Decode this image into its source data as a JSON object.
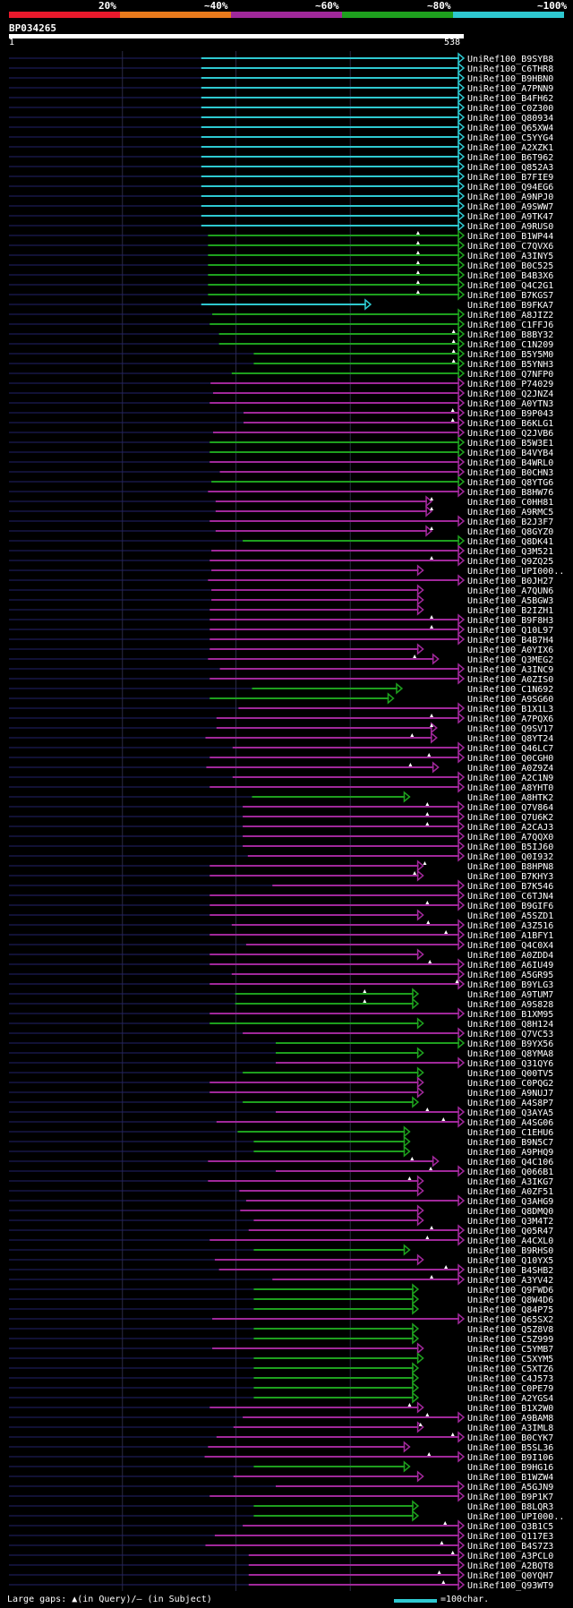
{
  "legend": {
    "labels": [
      "20%",
      "~40%",
      "~60%",
      "~80%",
      "~100%"
    ],
    "colors": [
      "#e8192c",
      "#e87a1c",
      "#a0289a",
      "#1ea01e",
      "#2ec8d0"
    ]
  },
  "query": {
    "name": "BP034265",
    "start": "1",
    "end": "538"
  },
  "footer": {
    "gaps_text": "Large gaps: ▲(in Query)/– (in Subject)",
    "scale_text": "=100char."
  },
  "hits": [
    {
      "id": "UniRef100_B9SYB8",
      "s": 228,
      "e": 538,
      "c": 4
    },
    {
      "id": "UniRef100_C6THR8",
      "s": 228,
      "e": 538,
      "c": 4
    },
    {
      "id": "UniRef100_B9HBN0",
      "s": 228,
      "e": 538,
      "c": 4
    },
    {
      "id": "UniRef100_A7PNN9",
      "s": 228,
      "e": 538,
      "c": 4
    },
    {
      "id": "UniRef100_B4FH62",
      "s": 228,
      "e": 538,
      "c": 4
    },
    {
      "id": "UniRef100_C0Z300",
      "s": 228,
      "e": 538,
      "c": 4
    },
    {
      "id": "UniRef100_Q80934",
      "s": 228,
      "e": 538,
      "c": 4
    },
    {
      "id": "UniRef100_Q65XW4",
      "s": 228,
      "e": 538,
      "c": 4
    },
    {
      "id": "UniRef100_C5YYG4",
      "s": 228,
      "e": 538,
      "c": 4
    },
    {
      "id": "UniRef100_A2XZK1",
      "s": 228,
      "e": 538,
      "c": 4
    },
    {
      "id": "UniRef100_B6T962",
      "s": 228,
      "e": 538,
      "c": 4
    },
    {
      "id": "UniRef100_Q852A3",
      "s": 228,
      "e": 538,
      "c": 4
    },
    {
      "id": "UniRef100_B7FIE9",
      "s": 228,
      "e": 538,
      "c": 4
    },
    {
      "id": "UniRef100_Q94EG6",
      "s": 228,
      "e": 538,
      "c": 4
    },
    {
      "id": "UniRef100_A9NPJ0",
      "s": 228,
      "e": 538,
      "c": 4
    },
    {
      "id": "UniRef100_A9SWW7",
      "s": 228,
      "e": 538,
      "c": 4
    },
    {
      "id": "UniRef100_A9TK47",
      "s": 228,
      "e": 538,
      "c": 4
    },
    {
      "id": "UniRef100_A9RUS0",
      "s": 228,
      "e": 538,
      "c": 4
    },
    {
      "id": "UniRef100_B1WP44",
      "s": 236,
      "e": 538,
      "c": 3,
      "t": [
        484
      ]
    },
    {
      "id": "UniRef100_C7QVX6",
      "s": 236,
      "e": 538,
      "c": 3,
      "t": [
        484
      ]
    },
    {
      "id": "UniRef100_A3INY5",
      "s": 236,
      "e": 538,
      "c": 3,
      "t": [
        484
      ]
    },
    {
      "id": "UniRef100_B0C525",
      "s": 236,
      "e": 538,
      "c": 3,
      "t": [
        484
      ]
    },
    {
      "id": "UniRef100_B4B3X6",
      "s": 236,
      "e": 538,
      "c": 3,
      "t": [
        484
      ]
    },
    {
      "id": "UniRef100_Q4C2G1",
      "s": 236,
      "e": 538,
      "c": 3,
      "t": [
        484
      ]
    },
    {
      "id": "UniRef100_B7KGS7",
      "s": 236,
      "e": 538,
      "c": 3,
      "t": [
        484
      ]
    },
    {
      "id": "UniRef100_B9FKA7",
      "s": 228,
      "e": 428,
      "c": 4
    },
    {
      "id": "UniRef100_A8JIZ2",
      "s": 241,
      "e": 538,
      "c": 3
    },
    {
      "id": "UniRef100_C1FFJ6",
      "s": 238,
      "e": 538,
      "c": 3
    },
    {
      "id": "UniRef100_B8BY32",
      "s": 249,
      "e": 538,
      "c": 3,
      "t": [
        526
      ]
    },
    {
      "id": "UniRef100_C1N209",
      "s": 249,
      "e": 538,
      "c": 3,
      "t": [
        526
      ]
    },
    {
      "id": "UniRef100_B5Y5M0",
      "s": 290,
      "e": 538,
      "c": 3,
      "t": [
        526
      ]
    },
    {
      "id": "UniRef100_B5YNH3",
      "s": 290,
      "e": 538,
      "c": 3,
      "t": [
        526
      ]
    },
    {
      "id": "UniRef100_Q7NFP0",
      "s": 264,
      "e": 538,
      "c": 3
    },
    {
      "id": "UniRef100_P74029",
      "s": 239,
      "e": 538,
      "c": 2
    },
    {
      "id": "UniRef100_Q2JNZ4",
      "s": 242,
      "e": 538,
      "c": 2
    },
    {
      "id": "UniRef100_A0YTN3",
      "s": 238,
      "e": 538,
      "c": 2
    },
    {
      "id": "UniRef100_B9P043",
      "s": 278,
      "e": 538,
      "c": 2,
      "t": [
        525
      ]
    },
    {
      "id": "UniRef100_B6KLG1",
      "s": 278,
      "e": 538,
      "c": 2,
      "t": [
        525
      ]
    },
    {
      "id": "UniRef100_Q2JVB6",
      "s": 242,
      "e": 538,
      "c": 2
    },
    {
      "id": "UniRef100_B5W3E1",
      "s": 238,
      "e": 538,
      "c": 3
    },
    {
      "id": "UniRef100_B4VYB4",
      "s": 238,
      "e": 538,
      "c": 3
    },
    {
      "id": "UniRef100_B4WRL0",
      "s": 238,
      "e": 538,
      "c": 2
    },
    {
      "id": "UniRef100_B0CHN3",
      "s": 250,
      "e": 538,
      "c": 2
    },
    {
      "id": "UniRef100_Q8YTG6",
      "s": 240,
      "e": 538,
      "c": 3
    },
    {
      "id": "UniRef100_B8HW76",
      "s": 236,
      "e": 538,
      "c": 2
    },
    {
      "id": "UniRef100_C0HH81",
      "s": 245,
      "e": 500,
      "c": 2,
      "t": [
        500
      ]
    },
    {
      "id": "UniRef100_A9RMC5",
      "s": 245,
      "e": 500,
      "c": 2,
      "t": [
        500
      ]
    },
    {
      "id": "UniRef100_B2J3F7",
      "s": 238,
      "e": 538,
      "c": 2
    },
    {
      "id": "UniRef100_Q8GYZ0",
      "s": 245,
      "e": 500,
      "c": 2,
      "t": [
        500
      ]
    },
    {
      "id": "UniRef100_Q8DK41",
      "s": 277,
      "e": 538,
      "c": 3
    },
    {
      "id": "UniRef100_Q3M521",
      "s": 240,
      "e": 538,
      "c": 2
    },
    {
      "id": "UniRef100_Q9ZQ25",
      "s": 238,
      "e": 538,
      "c": 2,
      "t": [
        500
      ]
    },
    {
      "id": "UniRef100_UPI000..",
      "s": 240,
      "e": 490,
      "c": 2
    },
    {
      "id": "UniRef100_B0JH27",
      "s": 236,
      "e": 538,
      "c": 2
    },
    {
      "id": "UniRef100_A7QUN6",
      "s": 240,
      "e": 490,
      "c": 2
    },
    {
      "id": "UniRef100_A5BGW3",
      "s": 240,
      "e": 490,
      "c": 2
    },
    {
      "id": "UniRef100_B2IZH1",
      "s": 238,
      "e": 490,
      "c": 2
    },
    {
      "id": "UniRef100_B9F8H3",
      "s": 238,
      "e": 538,
      "c": 2,
      "t": [
        500
      ]
    },
    {
      "id": "UniRef100_Q10L97",
      "s": 238,
      "e": 538,
      "c": 2,
      "t": [
        500
      ]
    },
    {
      "id": "UniRef100_B4B7H4",
      "s": 238,
      "e": 538,
      "c": 2
    },
    {
      "id": "UniRef100_A0YIX6",
      "s": 238,
      "e": 490,
      "c": 2
    },
    {
      "id": "UniRef100_Q3MEG2",
      "s": 236,
      "e": 508,
      "c": 2,
      "t": [
        480
      ]
    },
    {
      "id": "UniRef100_A3INC9",
      "s": 250,
      "e": 538,
      "c": 2
    },
    {
      "id": "UniRef100_A0ZIS0",
      "s": 238,
      "e": 538,
      "c": 2
    },
    {
      "id": "UniRef100_C1N692",
      "s": 288,
      "e": 465,
      "c": 3
    },
    {
      "id": "UniRef100_A9SG60",
      "s": 238,
      "e": 455,
      "c": 3
    },
    {
      "id": "UniRef100_B1X1L3",
      "s": 272,
      "e": 538,
      "c": 2
    },
    {
      "id": "UniRef100_A7PQX6",
      "s": 246,
      "e": 538,
      "c": 2,
      "t": [
        500
      ]
    },
    {
      "id": "UniRef100_Q9SV17",
      "s": 246,
      "e": 506,
      "c": 2,
      "t": [
        500
      ]
    },
    {
      "id": "UniRef100_Q8YT24",
      "s": 233,
      "e": 506,
      "c": 2,
      "t": [
        477
      ]
    },
    {
      "id": "UniRef100_Q46LC7",
      "s": 265,
      "e": 538,
      "c": 2
    },
    {
      "id": "UniRef100_Q0CGH0",
      "s": 238,
      "e": 538,
      "c": 2,
      "t": [
        497
      ]
    },
    {
      "id": "UniRef100_A0Z9Z4",
      "s": 234,
      "e": 508,
      "c": 2,
      "t": [
        475
      ]
    },
    {
      "id": "UniRef100_A2C1N9",
      "s": 265,
      "e": 538,
      "c": 2
    },
    {
      "id": "UniRef100_A8YHT0",
      "s": 238,
      "e": 538,
      "c": 2
    },
    {
      "id": "UniRef100_A8HTK2",
      "s": 288,
      "e": 474,
      "c": 3
    },
    {
      "id": "UniRef100_Q7V864",
      "s": 277,
      "e": 538,
      "c": 2,
      "t": [
        495
      ]
    },
    {
      "id": "UniRef100_Q7U6K2",
      "s": 277,
      "e": 538,
      "c": 2,
      "t": [
        495
      ]
    },
    {
      "id": "UniRef100_A2CAJ3",
      "s": 277,
      "e": 538,
      "c": 2,
      "t": [
        495
      ]
    },
    {
      "id": "UniRef100_A7QQX0",
      "s": 277,
      "e": 538,
      "c": 2
    },
    {
      "id": "UniRef100_B5IJ60",
      "s": 277,
      "e": 538,
      "c": 2
    },
    {
      "id": "UniRef100_Q0I932",
      "s": 283,
      "e": 538,
      "c": 2
    },
    {
      "id": "UniRef100_B8HPN8",
      "s": 238,
      "e": 490,
      "c": 2,
      "t": [
        492
      ]
    },
    {
      "id": "UniRef100_B7KHY3",
      "s": 238,
      "e": 490,
      "c": 2,
      "t": [
        480
      ]
    },
    {
      "id": "UniRef100_B7K546",
      "s": 312,
      "e": 538,
      "c": 2
    },
    {
      "id": "UniRef100_C6TJN4",
      "s": 238,
      "e": 538,
      "c": 2
    },
    {
      "id": "UniRef100_B9GIF6",
      "s": 238,
      "e": 538,
      "c": 2,
      "t": [
        495
      ]
    },
    {
      "id": "UniRef100_A5SZD1",
      "s": 238,
      "e": 490,
      "c": 2
    },
    {
      "id": "UniRef100_A3Z516",
      "s": 264,
      "e": 538,
      "c": 2,
      "t": [
        496
      ]
    },
    {
      "id": "UniRef100_A1BFY1",
      "s": 238,
      "e": 538,
      "c": 2,
      "t": [
        517
      ]
    },
    {
      "id": "UniRef100_Q4C0X4",
      "s": 281,
      "e": 538,
      "c": 2
    },
    {
      "id": "UniRef100_A0ZDD4",
      "s": 238,
      "e": 490,
      "c": 2
    },
    {
      "id": "UniRef100_A6IU49",
      "s": 238,
      "e": 538,
      "c": 2,
      "t": [
        498
      ]
    },
    {
      "id": "UniRef100_A5GR95",
      "s": 264,
      "e": 538,
      "c": 2
    },
    {
      "id": "UniRef100_B9YLG3",
      "s": 238,
      "e": 538,
      "c": 2,
      "t": [
        530
      ]
    },
    {
      "id": "UniRef100_A9TUM7",
      "s": 268,
      "e": 484,
      "c": 3,
      "t": [
        421
      ]
    },
    {
      "id": "UniRef100_A9S828",
      "s": 268,
      "e": 484,
      "c": 3,
      "t": [
        421
      ]
    },
    {
      "id": "UniRef100_B1XM95",
      "s": 238,
      "e": 538,
      "c": 2
    },
    {
      "id": "UniRef100_Q8H124",
      "s": 238,
      "e": 490,
      "c": 3
    },
    {
      "id": "UniRef100_Q7VC53",
      "s": 277,
      "e": 538,
      "c": 2
    },
    {
      "id": "UniRef100_B9YX56",
      "s": 316,
      "e": 538,
      "c": 3
    },
    {
      "id": "UniRef100_Q8YMA8",
      "s": 316,
      "e": 490,
      "c": 3
    },
    {
      "id": "UniRef100_Q31QY6",
      "s": 316,
      "e": 538,
      "c": 2
    },
    {
      "id": "UniRef100_Q00TV5",
      "s": 277,
      "e": 490,
      "c": 3
    },
    {
      "id": "UniRef100_C0PQG2",
      "s": 238,
      "e": 490,
      "c": 2
    },
    {
      "id": "UniRef100_A9NUJ7",
      "s": 238,
      "e": 490,
      "c": 2
    },
    {
      "id": "UniRef100_A4S8P7",
      "s": 277,
      "e": 484,
      "c": 3
    },
    {
      "id": "UniRef100_Q3AYA5",
      "s": 316,
      "e": 538,
      "c": 2,
      "t": [
        495
      ]
    },
    {
      "id": "UniRef100_A4SG06",
      "s": 246,
      "e": 538,
      "c": 2,
      "t": [
        514
      ]
    },
    {
      "id": "UniRef100_C1EHU6",
      "s": 271,
      "e": 474,
      "c": 3
    },
    {
      "id": "UniRef100_B9N5C7",
      "s": 290,
      "e": 474,
      "c": 3
    },
    {
      "id": "UniRef100_A9PHQ9",
      "s": 290,
      "e": 474,
      "c": 3
    },
    {
      "id": "UniRef100_Q4C106",
      "s": 236,
      "e": 508,
      "c": 2,
      "t": [
        477
      ]
    },
    {
      "id": "UniRef100_Q066B1",
      "s": 316,
      "e": 538,
      "c": 2,
      "t": [
        499
      ]
    },
    {
      "id": "UniRef100_A3IKG7",
      "s": 236,
      "e": 490,
      "c": 2,
      "t": [
        474
      ]
    },
    {
      "id": "UniRef100_A0ZF51",
      "s": 273,
      "e": 490,
      "c": 2
    },
    {
      "id": "UniRef100_Q3AHG9",
      "s": 281,
      "e": 538,
      "c": 2
    },
    {
      "id": "UniRef100_Q8DMQ0",
      "s": 274,
      "e": 490,
      "c": 2
    },
    {
      "id": "UniRef100_Q3M4T2",
      "s": 290,
      "e": 490,
      "c": 2
    },
    {
      "id": "UniRef100_Q05R47",
      "s": 284,
      "e": 538,
      "c": 2,
      "t": [
        500
      ]
    },
    {
      "id": "UniRef100_A4CXL0",
      "s": 238,
      "e": 538,
      "c": 2,
      "t": [
        495
      ]
    },
    {
      "id": "UniRef100_B9RHS0",
      "s": 290,
      "e": 474,
      "c": 3
    },
    {
      "id": "UniRef100_Q10YX5",
      "s": 244,
      "e": 490,
      "c": 2
    },
    {
      "id": "UniRef100_B4SHB2",
      "s": 249,
      "e": 538,
      "c": 2,
      "t": [
        517
      ]
    },
    {
      "id": "UniRef100_A3YV42",
      "s": 312,
      "e": 538,
      "c": 2,
      "t": [
        500
      ]
    },
    {
      "id": "UniRef100_Q9FWD6",
      "s": 290,
      "e": 484,
      "c": 3
    },
    {
      "id": "UniRef100_Q8W4D6",
      "s": 290,
      "e": 484,
      "c": 3
    },
    {
      "id": "UniRef100_Q84P75",
      "s": 290,
      "e": 484,
      "c": 3
    },
    {
      "id": "UniRef100_Q65SX2",
      "s": 241,
      "e": 538,
      "c": 2
    },
    {
      "id": "UniRef100_Q5Z8V8",
      "s": 290,
      "e": 484,
      "c": 3
    },
    {
      "id": "UniRef100_C5Z999",
      "s": 290,
      "e": 484,
      "c": 3
    },
    {
      "id": "UniRef100_C5YMB7",
      "s": 241,
      "e": 490,
      "c": 2
    },
    {
      "id": "UniRef100_C5XYM5",
      "s": 290,
      "e": 490,
      "c": 3
    },
    {
      "id": "UniRef100_C5XTZ6",
      "s": 290,
      "e": 484,
      "c": 3
    },
    {
      "id": "UniRef100_C4J573",
      "s": 290,
      "e": 484,
      "c": 3
    },
    {
      "id": "UniRef100_C0PE79",
      "s": 290,
      "e": 484,
      "c": 3
    },
    {
      "id": "UniRef100_A2YGS4",
      "s": 290,
      "e": 484,
      "c": 3
    },
    {
      "id": "UniRef100_B1X2W0",
      "s": 238,
      "e": 490,
      "c": 2,
      "t": [
        474
      ]
    },
    {
      "id": "UniRef100_A9BAM8",
      "s": 277,
      "e": 538,
      "c": 2,
      "t": [
        495
      ]
    },
    {
      "id": "UniRef100_A3IML8",
      "s": 266,
      "e": 490,
      "c": 2,
      "t": [
        487
      ]
    },
    {
      "id": "UniRef100_B0CYK7",
      "s": 246,
      "e": 538,
      "c": 2,
      "t": [
        525
      ]
    },
    {
      "id": "UniRef100_B5SL36",
      "s": 236,
      "e": 474,
      "c": 2
    },
    {
      "id": "UniRef100_B9I106",
      "s": 232,
      "e": 538,
      "c": 2,
      "t": [
        497
      ]
    },
    {
      "id": "UniRef100_B9HG16",
      "s": 290,
      "e": 474,
      "c": 3
    },
    {
      "id": "UniRef100_B1WZW4",
      "s": 266,
      "e": 490,
      "c": 2
    },
    {
      "id": "UniRef100_A5GJN9",
      "s": 316,
      "e": 538,
      "c": 2
    },
    {
      "id": "UniRef100_B9P1K7",
      "s": 238,
      "e": 538,
      "c": 2
    },
    {
      "id": "UniRef100_B8LQR3",
      "s": 290,
      "e": 484,
      "c": 3
    },
    {
      "id": "UniRef100_UPI000..",
      "s": 290,
      "e": 484,
      "c": 3
    },
    {
      "id": "UniRef100_Q3B1C5",
      "s": 277,
      "e": 538,
      "c": 2,
      "t": [
        516
      ]
    },
    {
      "id": "UniRef100_Q117E3",
      "s": 244,
      "e": 538,
      "c": 2
    },
    {
      "id": "UniRef100_B4S7Z3",
      "s": 233,
      "e": 538,
      "c": 2,
      "t": [
        512
      ]
    },
    {
      "id": "UniRef100_A3PCL0",
      "s": 284,
      "e": 538,
      "c": 2,
      "t": [
        525
      ]
    },
    {
      "id": "UniRef100_A2BQT8",
      "s": 284,
      "e": 538,
      "c": 2
    },
    {
      "id": "UniRef100_Q0YQH7",
      "s": 284,
      "e": 538,
      "c": 2,
      "t": [
        509
      ]
    },
    {
      "id": "UniRef100_Q93WT9",
      "s": 284,
      "e": 538,
      "c": 2,
      "t": [
        514
      ]
    }
  ]
}
